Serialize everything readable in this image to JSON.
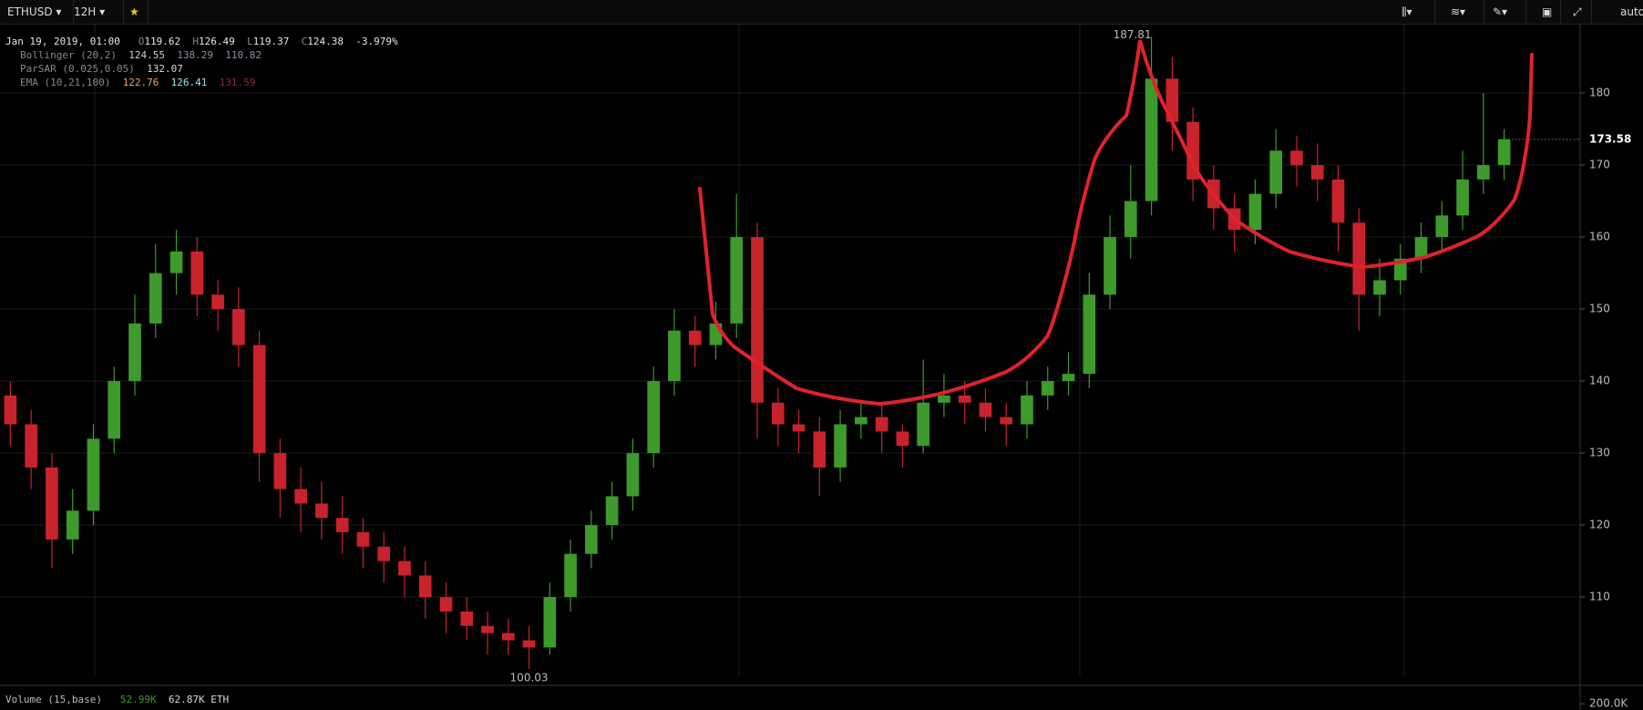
{
  "toolbar": {
    "symbol": "ETHUSD",
    "interval": "12H",
    "scale_mode": "auto"
  },
  "chart_data": {
    "type": "candlestick",
    "header": {
      "date": "Jan 19, 2019, 01:00",
      "o": "O",
      "open": 119.62,
      "h": "H",
      "high": 126.49,
      "l": "L",
      "low": 119.37,
      "c": "C",
      "close": 124.38,
      "change": "-3.979%"
    },
    "indicators": [
      {
        "name": "Bollinger (20,2)",
        "values": [
          124.55,
          138.29,
          110.82
        ],
        "colors": [
          "#cfcfcf",
          "#8a8fa8",
          "#8a8fa8"
        ]
      },
      {
        "name": "ParSAR (0.025,0.05)",
        "values": [
          132.07
        ],
        "colors": [
          "#d8d8d8"
        ]
      },
      {
        "name": "EMA (10,21,100)",
        "values": [
          122.76,
          126.41,
          131.59
        ],
        "colors": [
          "#e8a86a",
          "#9ee6f0",
          "#8c2a35"
        ]
      }
    ],
    "open": [
      138,
      134,
      128,
      118,
      122,
      132,
      140,
      148,
      155,
      158,
      152,
      150,
      145,
      130,
      125,
      123,
      121,
      119,
      117,
      115,
      113,
      110,
      108,
      106,
      105,
      104,
      103,
      110,
      116,
      120,
      124,
      130,
      140,
      147,
      145,
      148,
      160,
      137,
      134,
      133,
      128,
      134,
      135,
      133,
      131,
      137,
      138,
      137,
      135,
      134,
      138,
      140,
      141,
      152,
      160,
      165,
      182,
      176,
      168,
      164,
      161,
      166,
      172,
      170,
      168,
      162,
      152,
      154,
      157,
      160,
      163,
      168,
      170
    ],
    "high": [
      140,
      136,
      130,
      125,
      134,
      142,
      152,
      159,
      161,
      160,
      154,
      153,
      147,
      132,
      128,
      126,
      124,
      121,
      119,
      117,
      115,
      112,
      110,
      108,
      107,
      106,
      112,
      118,
      122,
      126,
      132,
      142,
      150,
      149,
      151,
      166,
      162,
      139,
      136,
      135,
      136,
      137,
      137,
      134,
      143,
      141,
      140,
      139,
      137,
      140,
      142,
      144,
      155,
      163,
      170,
      187.81,
      185,
      178,
      170,
      166,
      168,
      175,
      174,
      173,
      170,
      164,
      157,
      159,
      162,
      165,
      172,
      180,
      175
    ],
    "low": [
      131,
      125,
      114,
      116,
      120,
      130,
      138,
      146,
      152,
      149,
      147,
      142,
      126,
      121,
      119,
      118,
      116,
      114,
      112,
      110,
      107,
      105,
      104,
      102,
      102,
      100.03,
      102,
      108,
      114,
      118,
      122,
      128,
      138,
      142,
      143,
      146,
      132,
      131,
      130,
      124,
      126,
      132,
      130,
      128,
      130,
      135,
      134,
      133,
      131,
      132,
      136,
      138,
      139,
      150,
      157,
      163,
      172,
      165,
      161,
      158,
      159,
      164,
      167,
      165,
      158,
      147,
      149,
      152,
      155,
      158,
      161,
      166,
      168
    ],
    "close": [
      134,
      128,
      118,
      122,
      132,
      140,
      148,
      155,
      158,
      152,
      150,
      145,
      130,
      125,
      123,
      121,
      119,
      117,
      115,
      113,
      110,
      108,
      106,
      105,
      104,
      103,
      110,
      116,
      120,
      124,
      130,
      140,
      147,
      145,
      148,
      160,
      137,
      134,
      133,
      128,
      134,
      135,
      133,
      131,
      137,
      138,
      137,
      135,
      134,
      138,
      140,
      141,
      152,
      160,
      165,
      182,
      176,
      168,
      164,
      161,
      166,
      172,
      170,
      168,
      162,
      152,
      154,
      157,
      160,
      163,
      168,
      170,
      173.58
    ],
    "up_color": "#3f9a2c",
    "down_color": "#c8232c",
    "ylim": [
      99,
      189
    ],
    "yticks": [
      110,
      120,
      130,
      140,
      150,
      160,
      170,
      180
    ],
    "grid": true,
    "volume": {
      "legend": "Volume (15,base)",
      "values": [
        "52.99K",
        "62.87K ETH"
      ],
      "colors": [
        "#3f9a2c",
        "#d8d8d8"
      ],
      "ylim": [
        0,
        230000
      ],
      "yticks": [
        {
          "value": 200000,
          "label": "200.0K"
        }
      ]
    }
  }
}
